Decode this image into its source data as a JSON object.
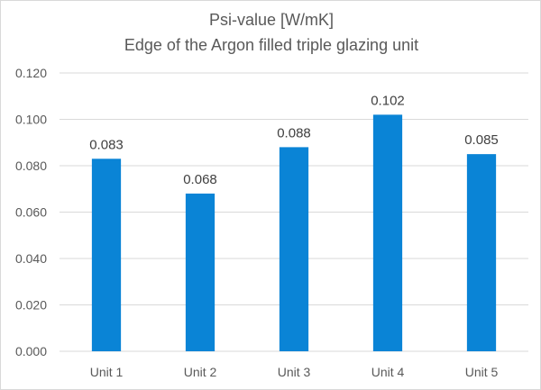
{
  "chart_data": {
    "type": "bar",
    "title": "Psi-value [W/mK]",
    "subtitle": "Edge of the Argon filled triple glazing unit",
    "categories": [
      "Unit 1",
      "Unit 2",
      "Unit 3",
      "Unit 4",
      "Unit 5"
    ],
    "values": [
      0.083,
      0.068,
      0.088,
      0.102,
      0.085
    ],
    "value_labels": [
      "0.083",
      "0.068",
      "0.088",
      "0.102",
      "0.085"
    ],
    "yticks": [
      "0.000",
      "0.020",
      "0.040",
      "0.060",
      "0.080",
      "0.100",
      "0.120"
    ],
    "ylim": [
      0,
      0.12
    ],
    "grid": true,
    "legend": "none",
    "bar_color": "#0a84d6"
  }
}
